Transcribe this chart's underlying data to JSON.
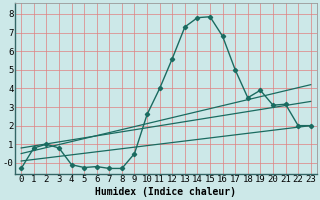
{
  "xlabel": "Humidex (Indice chaleur)",
  "bg_color": "#cce8e8",
  "grid_color": "#e08080",
  "line_color": "#1a6b60",
  "xlim": [
    -0.5,
    23.5
  ],
  "ylim": [
    -0.6,
    8.6
  ],
  "xticks": [
    0,
    1,
    2,
    3,
    4,
    5,
    6,
    7,
    8,
    9,
    10,
    11,
    12,
    13,
    14,
    15,
    16,
    17,
    18,
    19,
    20,
    21,
    22,
    23
  ],
  "yticks": [
    0,
    1,
    2,
    3,
    4,
    5,
    6,
    7,
    8
  ],
  "ytick_labels": [
    "-0",
    "1",
    "2",
    "3",
    "4",
    "5",
    "6",
    "7",
    "8"
  ],
  "line1_x": [
    0,
    1,
    2,
    3,
    4,
    5,
    6,
    7,
    8,
    9,
    10,
    11,
    12,
    13,
    14,
    15,
    16,
    17,
    18,
    19,
    20,
    21,
    22,
    23
  ],
  "line1_y": [
    -0.3,
    0.8,
    1.0,
    0.8,
    -0.1,
    -0.25,
    -0.2,
    -0.3,
    -0.3,
    0.5,
    2.6,
    4.0,
    5.6,
    7.3,
    7.8,
    7.85,
    6.8,
    5.0,
    3.5,
    3.9,
    3.1,
    3.15,
    2.0,
    2.0
  ],
  "line2_x": [
    0,
    23
  ],
  "line2_y": [
    0.5,
    4.2
  ],
  "line3_x": [
    0,
    23
  ],
  "line3_y": [
    0.8,
    3.3
  ],
  "line4_x": [
    0,
    23
  ],
  "line4_y": [
    0.1,
    2.0
  ],
  "xlabel_fontsize": 7,
  "tick_fontsize": 6.5
}
